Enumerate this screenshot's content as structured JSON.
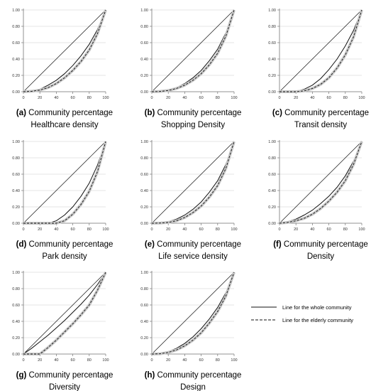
{
  "chart_data": [
    {
      "type": "line",
      "letter": "(a)",
      "xlabel": "Community percentage",
      "subtitle": "Healthcare density",
      "x_ticks": [
        0,
        20,
        40,
        60,
        80,
        100
      ],
      "y_ticks": [
        "0.00",
        "0.20",
        "0.40",
        "0.60",
        "0.80",
        "1.00"
      ],
      "xlim": [
        0,
        100
      ],
      "ylim": [
        0,
        1
      ],
      "grid": "horizontal",
      "x": [
        0,
        10,
        20,
        30,
        40,
        50,
        60,
        70,
        80,
        90,
        100
      ],
      "series": [
        {
          "role": "equality",
          "values": [
            0,
            0.1,
            0.2,
            0.3,
            0.4,
            0.5,
            0.6,
            0.7,
            0.8,
            0.9,
            1.0
          ]
        },
        {
          "role": "whole_community",
          "values": [
            0,
            0.01,
            0.03,
            0.08,
            0.14,
            0.22,
            0.32,
            0.44,
            0.58,
            0.76,
            1.0
          ]
        },
        {
          "role": "elderly_community",
          "values": [
            0,
            0.005,
            0.02,
            0.05,
            0.1,
            0.17,
            0.26,
            0.37,
            0.51,
            0.71,
            1.0
          ]
        }
      ]
    },
    {
      "type": "line",
      "letter": "(b)",
      "xlabel": "Community percentage",
      "subtitle": "Shopping Density",
      "x_ticks": [
        0,
        20,
        40,
        60,
        80,
        100
      ],
      "y_ticks": [
        "0.00",
        "0.20",
        "0.40",
        "0.60",
        "0.80",
        "1.00"
      ],
      "xlim": [
        0,
        100
      ],
      "ylim": [
        0,
        1
      ],
      "grid": "horizontal",
      "x": [
        0,
        10,
        20,
        30,
        40,
        50,
        60,
        70,
        80,
        90,
        100
      ],
      "series": [
        {
          "role": "equality",
          "values": [
            0,
            0.1,
            0.2,
            0.3,
            0.4,
            0.5,
            0.6,
            0.7,
            0.8,
            0.9,
            1.0
          ]
        },
        {
          "role": "whole_community",
          "values": [
            0,
            0.005,
            0.02,
            0.05,
            0.1,
            0.17,
            0.26,
            0.38,
            0.52,
            0.72,
            1.0
          ]
        },
        {
          "role": "elderly_community",
          "values": [
            0,
            0.003,
            0.015,
            0.04,
            0.08,
            0.14,
            0.22,
            0.33,
            0.47,
            0.68,
            1.0
          ]
        }
      ]
    },
    {
      "type": "line",
      "letter": "(c)",
      "xlabel": "Community percentage",
      "subtitle": "Transit density",
      "x_ticks": [
        0,
        20,
        40,
        60,
        80,
        100
      ],
      "y_ticks": [
        "0.00",
        "0.20",
        "0.40",
        "0.60",
        "0.80",
        "1.00"
      ],
      "xlim": [
        0,
        100
      ],
      "ylim": [
        0,
        1
      ],
      "grid": "horizontal",
      "x": [
        0,
        10,
        20,
        30,
        40,
        50,
        60,
        70,
        80,
        90,
        100
      ],
      "series": [
        {
          "role": "equality",
          "values": [
            0,
            0.1,
            0.2,
            0.3,
            0.4,
            0.5,
            0.6,
            0.7,
            0.8,
            0.9,
            1.0
          ]
        },
        {
          "role": "whole_community",
          "values": [
            0,
            0,
            0.005,
            0.03,
            0.08,
            0.16,
            0.27,
            0.4,
            0.56,
            0.75,
            1.0
          ]
        },
        {
          "role": "elderly_community",
          "values": [
            0,
            0,
            0,
            0.01,
            0.04,
            0.09,
            0.17,
            0.29,
            0.45,
            0.67,
            1.0
          ]
        }
      ]
    },
    {
      "type": "line",
      "letter": "(d)",
      "xlabel": "Community percentage",
      "subtitle": "Park density",
      "x_ticks": [
        0,
        20,
        40,
        60,
        80,
        100
      ],
      "y_ticks": [
        "0.00",
        "0.20",
        "0.40",
        "0.60",
        "0.80",
        "1.00"
      ],
      "xlim": [
        0,
        100
      ],
      "ylim": [
        0,
        1
      ],
      "grid": "horizontal",
      "x": [
        0,
        10,
        20,
        30,
        40,
        50,
        60,
        70,
        80,
        90,
        100
      ],
      "series": [
        {
          "role": "equality",
          "values": [
            0,
            0.1,
            0.2,
            0.3,
            0.4,
            0.5,
            0.6,
            0.7,
            0.8,
            0.9,
            1.0
          ]
        },
        {
          "role": "whole_community",
          "values": [
            0,
            0,
            0,
            0,
            0.03,
            0.1,
            0.2,
            0.33,
            0.49,
            0.71,
            1.0
          ]
        },
        {
          "role": "elderly_community",
          "values": [
            0,
            0,
            0,
            0,
            0,
            0.03,
            0.11,
            0.23,
            0.39,
            0.63,
            1.0
          ]
        }
      ]
    },
    {
      "type": "line",
      "letter": "(e)",
      "xlabel": "Community percentage",
      "subtitle": "Life service density",
      "x_ticks": [
        0,
        20,
        40,
        60,
        80,
        100
      ],
      "y_ticks": [
        "0.00",
        "0.20",
        "0.40",
        "0.60",
        "0.80",
        "1.00"
      ],
      "xlim": [
        0,
        100
      ],
      "ylim": [
        0,
        1
      ],
      "grid": "horizontal",
      "x": [
        0,
        10,
        20,
        30,
        40,
        50,
        60,
        70,
        80,
        90,
        100
      ],
      "series": [
        {
          "role": "equality",
          "values": [
            0,
            0.1,
            0.2,
            0.3,
            0.4,
            0.5,
            0.6,
            0.7,
            0.8,
            0.9,
            1.0
          ]
        },
        {
          "role": "whole_community",
          "values": [
            0,
            0.005,
            0.02,
            0.05,
            0.1,
            0.17,
            0.26,
            0.38,
            0.52,
            0.72,
            1.0
          ]
        },
        {
          "role": "elderly_community",
          "values": [
            0,
            0.002,
            0.01,
            0.03,
            0.07,
            0.13,
            0.21,
            0.32,
            0.46,
            0.67,
            1.0
          ]
        }
      ]
    },
    {
      "type": "line",
      "letter": "(f)",
      "xlabel": "Community percentage",
      "subtitle": "Density",
      "x_ticks": [
        0,
        20,
        40,
        60,
        80,
        100
      ],
      "y_ticks": [
        "0.00",
        "0.20",
        "0.40",
        "0.60",
        "0.80",
        "1.00"
      ],
      "xlim": [
        0,
        100
      ],
      "ylim": [
        0,
        1
      ],
      "grid": "horizontal",
      "x": [
        0,
        10,
        20,
        30,
        40,
        50,
        60,
        70,
        80,
        90,
        100
      ],
      "series": [
        {
          "role": "equality",
          "values": [
            0,
            0.1,
            0.2,
            0.3,
            0.4,
            0.5,
            0.6,
            0.7,
            0.8,
            0.9,
            1.0
          ]
        },
        {
          "role": "whole_community",
          "values": [
            0,
            0.02,
            0.05,
            0.1,
            0.16,
            0.24,
            0.33,
            0.44,
            0.58,
            0.76,
            1.0
          ]
        },
        {
          "role": "elderly_community",
          "values": [
            0,
            0.01,
            0.03,
            0.06,
            0.11,
            0.18,
            0.27,
            0.38,
            0.52,
            0.72,
            1.0
          ]
        }
      ]
    },
    {
      "type": "line",
      "letter": "(g)",
      "xlabel": "Community percentage",
      "subtitle": "Diversity",
      "x_ticks": [
        0,
        20,
        40,
        60,
        80,
        100
      ],
      "y_ticks": [
        "0.00",
        "0.20",
        "0.40",
        "0.60",
        "0.80",
        "1.00"
      ],
      "xlim": [
        0,
        100
      ],
      "ylim": [
        0,
        1
      ],
      "grid": "horizontal",
      "x": [
        0,
        10,
        20,
        30,
        40,
        50,
        60,
        70,
        80,
        90,
        100
      ],
      "series": [
        {
          "role": "equality",
          "values": [
            0,
            0.1,
            0.2,
            0.3,
            0.4,
            0.5,
            0.6,
            0.7,
            0.8,
            0.9,
            1.0
          ]
        },
        {
          "role": "whole_community",
          "values": [
            0,
            0.07,
            0.15,
            0.23,
            0.32,
            0.41,
            0.51,
            0.61,
            0.72,
            0.85,
            1.0
          ]
        },
        {
          "role": "elderly_community",
          "values": [
            0,
            0,
            0,
            0.08,
            0.17,
            0.27,
            0.37,
            0.48,
            0.6,
            0.78,
            1.0
          ]
        }
      ]
    },
    {
      "type": "line",
      "letter": "(h)",
      "xlabel": "Community percentage",
      "subtitle": "Design",
      "x_ticks": [
        0,
        20,
        40,
        60,
        80,
        100
      ],
      "y_ticks": [
        "0.00",
        "0.20",
        "0.40",
        "0.60",
        "0.80",
        "1.00"
      ],
      "xlim": [
        0,
        100
      ],
      "ylim": [
        0,
        1
      ],
      "grid": "horizontal",
      "x": [
        0,
        10,
        20,
        30,
        40,
        50,
        60,
        70,
        80,
        90,
        100
      ],
      "series": [
        {
          "role": "equality",
          "values": [
            0,
            0.1,
            0.2,
            0.3,
            0.4,
            0.5,
            0.6,
            0.7,
            0.8,
            0.9,
            1.0
          ]
        },
        {
          "role": "whole_community",
          "values": [
            0,
            0.005,
            0.03,
            0.07,
            0.13,
            0.21,
            0.31,
            0.43,
            0.57,
            0.75,
            1.0
          ]
        },
        {
          "role": "elderly_community",
          "values": [
            0,
            0.003,
            0.02,
            0.05,
            0.1,
            0.17,
            0.26,
            0.38,
            0.52,
            0.71,
            1.0
          ]
        }
      ]
    }
  ],
  "legend": {
    "placement": "right",
    "items": [
      {
        "label": "Line for the whole community",
        "style": "solid"
      },
      {
        "label": "Line for the elderly community",
        "style": "dashed"
      }
    ]
  },
  "colors": {
    "line": "#111111",
    "band": "#c8c8c8",
    "grid": "#dcdcdc",
    "axis": "#777777"
  }
}
